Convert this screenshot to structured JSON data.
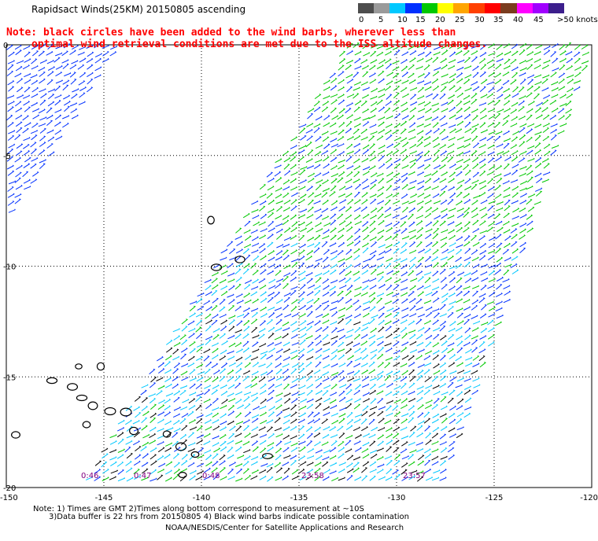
{
  "title": "Rapidsact Winds(25KM) 20150805 ascending",
  "note": {
    "line1": "Note: black circles have been added to the wind barbs, wherever less than",
    "line2": "optimal wind retrieval conditions are met due to the ISS altitude changes."
  },
  "colorbar": {
    "colors": [
      "#4d4d4d",
      "#9a9a9a",
      "#00c8ff",
      "#0030ff",
      "#00c800",
      "#ffff00",
      "#ffa500",
      "#ff4000",
      "#ff0000",
      "#7a3c1e",
      "#ff00ff",
      "#a000ff",
      "#3c1e8c"
    ],
    "labels": [
      "0",
      "5",
      "10",
      "15",
      "20",
      "25",
      "30",
      "35",
      "40",
      "45",
      ">50 knots"
    ],
    "unit": ""
  },
  "axes": {
    "lat_labels": [
      "0",
      "-5",
      "-10",
      "-15",
      "-20"
    ],
    "lon_labels": [
      "-150",
      "-145",
      "-140",
      "-135",
      "-130",
      "-125",
      "-120"
    ]
  },
  "time_labels": [
    "0:46",
    "0:47",
    "0:48",
    "23:58",
    "23:57"
  ],
  "footer": {
    "line1": "Note: 1) Times are GMT 2)Times along bottom correspond to measurement at ~10S",
    "line2": "3)Data buffer is 22 hrs from 20150805 4) Black wind barbs indicate possible contamination",
    "line3": "NOAA/NESDIS/Center for Satellite Applications and Research"
  },
  "colors": {
    "note_text": "#ff0000",
    "time_label": "#800080",
    "wind_green": "#00c800",
    "wind_blue": "#0030ff",
    "wind_cyan": "#00c8ff",
    "contamination": "#000000"
  }
}
